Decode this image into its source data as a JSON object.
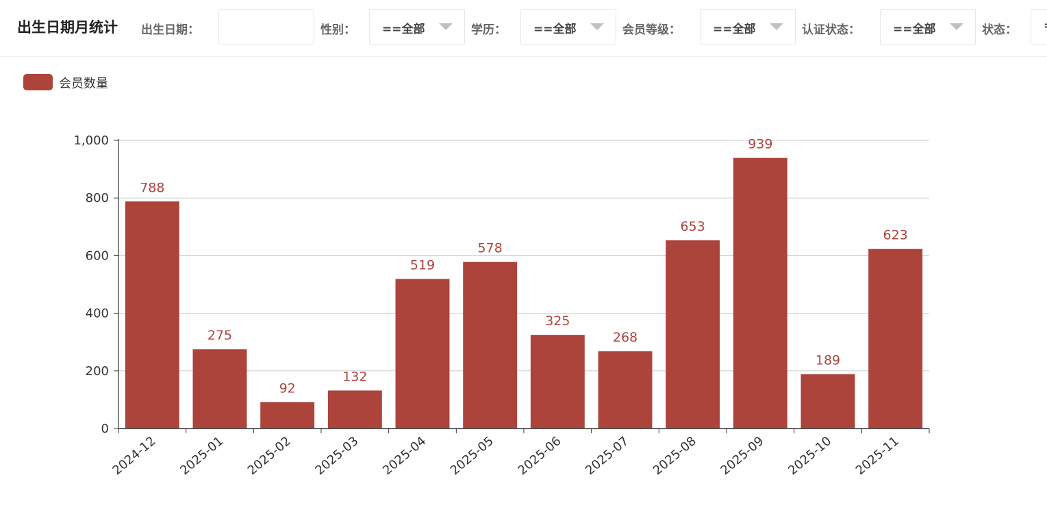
{
  "header": {
    "title": "出生日期月统计",
    "filters": [
      {
        "label": "出生日期：",
        "value": ""
      },
      {
        "label": "性别：",
        "value": "==全部"
      },
      {
        "label": "学历：",
        "value": "==全部"
      },
      {
        "label": "会员等级：",
        "value": "==全部"
      },
      {
        "label": "认证状态：",
        "value": "==全部"
      },
      {
        "label": "状态：",
        "value": "=="
      }
    ]
  },
  "colors": {
    "bar": "#ad443c",
    "axis": "#333333",
    "grid": "#cccccc"
  },
  "chart_data": {
    "type": "bar",
    "categories": [
      "2024-12",
      "2025-01",
      "2025-02",
      "2025-03",
      "2025-04",
      "2025-05",
      "2025-06",
      "2025-07",
      "2025-08",
      "2025-09",
      "2025-10",
      "2025-11"
    ],
    "series": [
      {
        "name": "会员数量",
        "values": [
          788,
          275,
          92,
          132,
          519,
          578,
          325,
          268,
          653,
          939,
          189,
          623
        ]
      }
    ],
    "ylim": [
      0,
      1000
    ],
    "yticks": [
      "0",
      "200",
      "400",
      "600",
      "800",
      "1,000"
    ],
    "grid": true,
    "legend": "top-left"
  }
}
